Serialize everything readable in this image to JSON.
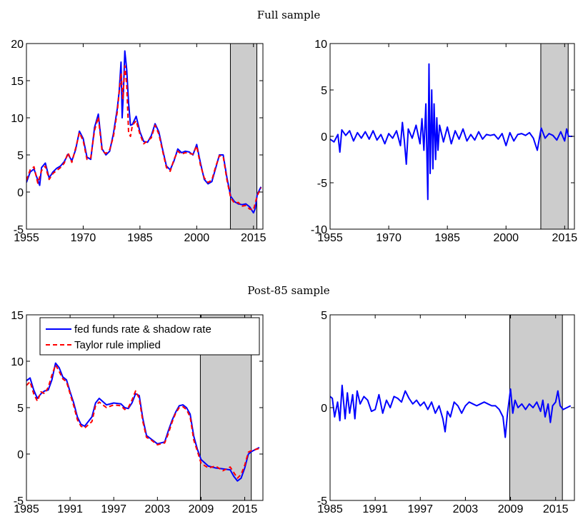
{
  "figure": {
    "row_titles": [
      "Full sample",
      "Post-85 sample"
    ]
  },
  "colors": {
    "series_blue": "#0000ff",
    "series_red": "#ff0000",
    "shade": "#cccccc",
    "axis": "#000000"
  },
  "chart_data": [
    {
      "panel": "top-left",
      "type": "line",
      "row_title": "Full sample",
      "xlim": [
        1955,
        2017.5
      ],
      "ylim": [
        -5,
        20
      ],
      "xticks": [
        1955,
        1970,
        1985,
        2000,
        2015
      ],
      "yticks": [
        -5,
        0,
        5,
        10,
        15,
        20
      ],
      "shaded_regions": [
        [
          2008.9,
          2015.9
        ]
      ],
      "grid": false,
      "series": [
        {
          "color": "#0000ff",
          "dash": "solid",
          "x": [
            1955,
            1956,
            1957,
            1958,
            1958.5,
            1959,
            1960,
            1961,
            1962,
            1963,
            1964,
            1965,
            1966,
            1967,
            1968,
            1969,
            1970,
            1971,
            1972,
            1973,
            1974,
            1975,
            1976,
            1977,
            1978,
            1979,
            1979.5,
            1980,
            1980.3,
            1980.6,
            1981,
            1981.5,
            1982,
            1982.5,
            1983,
            1984,
            1985,
            1986,
            1987,
            1988,
            1989,
            1990,
            1991,
            1992,
            1993,
            1994,
            1995,
            1996,
            1997,
            1998,
            1999,
            2000,
            2001,
            2002,
            2003,
            2004,
            2005,
            2006,
            2007,
            2008,
            2009,
            2010,
            2011,
            2012,
            2013,
            2014,
            2015,
            2015.5,
            2016,
            2017
          ],
          "y": [
            1.3,
            2.7,
            3.1,
            1.6,
            0.9,
            3.3,
            3.9,
            1.9,
            2.7,
            3.2,
            3.5,
            4.1,
            5.1,
            4.2,
            5.7,
            8.2,
            7.2,
            4.7,
            4.4,
            8.7,
            10.5,
            5.8,
            5.0,
            5.5,
            7.9,
            11.2,
            13.5,
            17.5,
            10.0,
            13.0,
            19.0,
            16.5,
            12.0,
            9.0,
            9.1,
            10.2,
            8.1,
            6.8,
            6.7,
            7.6,
            9.2,
            8.1,
            5.7,
            3.5,
            3.0,
            4.2,
            5.8,
            5.3,
            5.5,
            5.4,
            5.0,
            6.4,
            3.9,
            1.7,
            1.1,
            1.4,
            3.2,
            5.0,
            5.0,
            1.9,
            -0.6,
            -1.3,
            -1.6,
            -1.7,
            -1.6,
            -2.0,
            -2.8,
            -2.2,
            -0.3,
            0.7
          ]
        },
        {
          "color": "#ff0000",
          "dash": "dashed",
          "x": [
            1955,
            1956,
            1957,
            1958,
            1959,
            1960,
            1961,
            1962,
            1963,
            1964,
            1965,
            1966,
            1967,
            1968,
            1969,
            1970,
            1971,
            1972,
            1973,
            1974,
            1975,
            1976,
            1977,
            1978,
            1979,
            1980,
            1980.5,
            1981,
            1981.5,
            1982,
            1982.5,
            1983,
            1984,
            1985,
            1986,
            1987,
            1988,
            1989,
            1990,
            1991,
            1992,
            1993,
            1994,
            1995,
            1996,
            1997,
            1998,
            1999,
            2000,
            2001,
            2002,
            2003,
            2004,
            2005,
            2006,
            2007,
            2008,
            2009,
            2010,
            2011,
            2012,
            2013,
            2014,
            2015,
            2016,
            2017
          ],
          "y": [
            1.6,
            3.0,
            3.4,
            1.2,
            2.9,
            3.5,
            1.7,
            2.5,
            2.9,
            3.3,
            3.9,
            5.3,
            4.0,
            5.9,
            8.0,
            6.9,
            4.4,
            4.6,
            8.3,
            10.1,
            5.5,
            5.2,
            5.7,
            7.5,
            10.8,
            16.0,
            12.5,
            17.0,
            14.5,
            8.0,
            7.5,
            9.0,
            9.6,
            7.8,
            6.5,
            6.9,
            7.3,
            9.0,
            7.8,
            5.5,
            3.3,
            2.8,
            4.4,
            5.5,
            5.1,
            5.3,
            5.2,
            5.1,
            6.2,
            3.6,
            1.9,
            1.3,
            1.6,
            3.4,
            4.9,
            4.8,
            1.6,
            -0.8,
            -1.5,
            -1.4,
            -1.9,
            -1.8,
            -2.3,
            -2.4,
            -0.5,
            0.6
          ]
        }
      ]
    },
    {
      "panel": "top-right",
      "type": "line",
      "row_title": "Full sample",
      "xlim": [
        1955,
        2017.5
      ],
      "ylim": [
        -10,
        10
      ],
      "xticks": [
        1955,
        1970,
        1985,
        2000,
        2015
      ],
      "yticks": [
        -10,
        -5,
        0,
        5,
        10
      ],
      "shaded_regions": [
        [
          2008.9,
          2015.9
        ]
      ],
      "grid": false,
      "series": [
        {
          "color": "#0000ff",
          "dash": "solid",
          "x": [
            1955,
            1956,
            1957,
            1957.5,
            1958,
            1959,
            1960,
            1961,
            1962,
            1963,
            1964,
            1965,
            1966,
            1967,
            1968,
            1969,
            1970,
            1971,
            1972,
            1973,
            1973.5,
            1974,
            1974.5,
            1975,
            1976,
            1977,
            1978,
            1978.5,
            1979,
            1979.5,
            1980,
            1980.3,
            1980.6,
            1981,
            1981.3,
            1981.6,
            1982,
            1982.3,
            1982.6,
            1983,
            1984,
            1985,
            1986,
            1987,
            1988,
            1989,
            1990,
            1991,
            1992,
            1993,
            1994,
            1995,
            1996,
            1997,
            1998,
            1999,
            2000,
            2001,
            2002,
            2003,
            2004,
            2005,
            2006,
            2007,
            2008,
            2009,
            2010,
            2011,
            2012,
            2013,
            2014,
            2015,
            2015.5,
            2016,
            2017
          ],
          "y": [
            -0.3,
            -0.6,
            0.2,
            -1.7,
            0.7,
            0.1,
            0.6,
            -0.5,
            0.4,
            -0.2,
            0.5,
            -0.3,
            0.6,
            -0.4,
            0.2,
            -0.8,
            0.3,
            -0.2,
            0.6,
            -1.0,
            1.5,
            -0.5,
            -3.0,
            0.8,
            -0.2,
            1.2,
            -0.8,
            1.9,
            -1.5,
            3.5,
            -6.8,
            7.8,
            -4.0,
            5.0,
            -3.5,
            3.5,
            -2.5,
            2.0,
            -1.5,
            1.2,
            -0.6,
            1.0,
            -0.8,
            0.6,
            -0.3,
            0.8,
            -0.5,
            0.2,
            -0.4,
            0.5,
            -0.3,
            0.2,
            0.1,
            0.2,
            -0.3,
            0.3,
            -1.0,
            0.4,
            -0.5,
            0.2,
            0.3,
            0.1,
            0.4,
            -0.2,
            -1.5,
            0.9,
            -0.2,
            0.3,
            0.1,
            -0.4,
            0.5,
            -0.5,
            0.8,
            0.0,
            0.0
          ]
        }
      ]
    },
    {
      "panel": "bottom-left",
      "type": "line",
      "row_title": "Post-85 sample",
      "xlim": [
        1985,
        2017.5
      ],
      "ylim": [
        -5,
        15
      ],
      "xticks": [
        1985,
        1991,
        1997,
        2003,
        2009,
        2015
      ],
      "yticks": [
        -5,
        0,
        5,
        10,
        15
      ],
      "shaded_regions": [
        [
          2008.9,
          2015.9
        ]
      ],
      "grid": false,
      "legend": {
        "position": "top",
        "entries": [
          "fed funds rate & shadow rate",
          "Taylor rule implied"
        ]
      },
      "series": [
        {
          "name": "fed funds rate & shadow rate",
          "color": "#0000ff",
          "dash": "solid",
          "x": [
            1985,
            1985.5,
            1986,
            1986.5,
            1987,
            1987.5,
            1988,
            1988.5,
            1989,
            1989.5,
            1990,
            1990.5,
            1991,
            1991.5,
            1992,
            1992.5,
            1993,
            1994,
            1994.5,
            1995,
            1996,
            1997,
            1998,
            1998.5,
            1999,
            1999.5,
            2000,
            2000.5,
            2001,
            2001.5,
            2002,
            2003,
            2004,
            2004.5,
            2005,
            2005.5,
            2006,
            2006.5,
            2007,
            2007.5,
            2008,
            2008.5,
            2009,
            2010,
            2011,
            2012,
            2013,
            2013.5,
            2014,
            2014.5,
            2015,
            2015.5,
            2016,
            2017
          ],
          "y": [
            7.9,
            8.2,
            6.9,
            6.0,
            6.5,
            6.8,
            6.9,
            8.0,
            9.8,
            9.3,
            8.3,
            8.0,
            6.7,
            5.5,
            4.0,
            3.2,
            3.0,
            4.0,
            5.5,
            6.0,
            5.3,
            5.5,
            5.4,
            5.0,
            4.9,
            5.5,
            6.5,
            6.3,
            3.8,
            2.0,
            1.7,
            1.1,
            1.3,
            2.5,
            3.6,
            4.5,
            5.2,
            5.3,
            5.0,
            4.3,
            1.9,
            0.5,
            -0.6,
            -1.3,
            -1.5,
            -1.6,
            -1.7,
            -2.4,
            -2.9,
            -2.6,
            -1.5,
            0.0,
            0.3,
            0.7
          ]
        },
        {
          "name": "Taylor rule implied",
          "color": "#ff0000",
          "dash": "dashed",
          "x": [
            1985,
            1985.5,
            1986,
            1986.5,
            1987,
            1987.5,
            1988,
            1988.5,
            1989,
            1989.5,
            1990,
            1990.5,
            1991,
            1991.5,
            1992,
            1992.5,
            1993,
            1994,
            1994.5,
            1995,
            1996,
            1997,
            1998,
            1998.5,
            1999,
            1999.5,
            2000,
            2000.5,
            2001,
            2001.5,
            2002,
            2003,
            2004,
            2004.5,
            2005,
            2005.5,
            2006,
            2006.5,
            2007,
            2007.5,
            2008,
            2008.5,
            2009,
            2010,
            2011,
            2012,
            2013,
            2013.5,
            2014,
            2014.5,
            2015,
            2015.5,
            2016,
            2017
          ],
          "y": [
            7.4,
            7.8,
            6.5,
            5.7,
            6.7,
            6.5,
            7.2,
            8.5,
            9.6,
            8.9,
            8.1,
            7.8,
            6.5,
            5.2,
            3.7,
            3.0,
            2.8,
            3.5,
            5.2,
            5.6,
            5.0,
            5.3,
            5.2,
            4.8,
            5.0,
            5.8,
            6.8,
            6.0,
            3.5,
            1.8,
            1.6,
            1.0,
            1.2,
            2.2,
            3.4,
            4.4,
            5.0,
            5.1,
            4.8,
            4.0,
            1.5,
            0.3,
            -1.0,
            -1.5,
            -1.3,
            -1.8,
            -1.4,
            -2.0,
            -2.6,
            -2.2,
            -1.2,
            0.2,
            0.4,
            0.6
          ]
        }
      ]
    },
    {
      "panel": "bottom-right",
      "type": "line",
      "row_title": "Post-85 sample",
      "xlim": [
        1985,
        2017.5
      ],
      "ylim": [
        -5,
        5
      ],
      "xticks": [
        1985,
        1991,
        1997,
        2003,
        2009,
        2015
      ],
      "yticks": [
        -5,
        0,
        5
      ],
      "shaded_regions": [
        [
          2008.9,
          2015.9
        ]
      ],
      "grid": false,
      "series": [
        {
          "color": "#0000ff",
          "dash": "solid",
          "x": [
            1985,
            1985.3,
            1985.6,
            1986,
            1986.3,
            1986.6,
            1987,
            1987.3,
            1987.6,
            1988,
            1988.3,
            1988.6,
            1989,
            1989.5,
            1990,
            1990.5,
            1991,
            1991.5,
            1992,
            1992.5,
            1993,
            1993.5,
            1994,
            1994.5,
            1995,
            1995.5,
            1996,
            1996.5,
            1997,
            1997.5,
            1998,
            1998.5,
            1999,
            1999.5,
            2000,
            2000.3,
            2000.6,
            2001,
            2001.5,
            2002,
            2002.5,
            2003,
            2003.5,
            2004,
            2004.5,
            2005,
            2005.5,
            2006,
            2006.5,
            2007,
            2007.5,
            2008,
            2008.3,
            2008.6,
            2009,
            2009.3,
            2009.6,
            2010,
            2010.5,
            2011,
            2011.5,
            2012,
            2012.5,
            2013,
            2013.3,
            2013.6,
            2014,
            2014.3,
            2014.6,
            2015,
            2015.3,
            2015.6,
            2016,
            2017
          ],
          "y": [
            0.6,
            0.5,
            -0.5,
            0.3,
            -0.7,
            1.2,
            -0.6,
            0.8,
            -0.3,
            0.7,
            -0.6,
            0.9,
            0.2,
            0.6,
            0.4,
            -0.2,
            -0.1,
            0.7,
            -0.3,
            0.4,
            0.0,
            0.6,
            0.5,
            0.3,
            0.9,
            0.5,
            0.2,
            0.4,
            0.1,
            0.3,
            -0.1,
            0.3,
            -0.3,
            0.1,
            -0.6,
            -1.3,
            -0.2,
            -0.5,
            0.3,
            0.1,
            -0.3,
            0.1,
            0.3,
            0.2,
            0.1,
            0.2,
            0.3,
            0.2,
            0.1,
            0.1,
            -0.1,
            -0.5,
            -1.6,
            -0.3,
            1.0,
            -0.3,
            0.4,
            0.0,
            0.2,
            -0.1,
            0.2,
            0.0,
            0.3,
            -0.2,
            0.4,
            -0.5,
            0.2,
            -0.8,
            0.1,
            0.3,
            0.9,
            0.1,
            -0.1,
            0.1
          ]
        }
      ]
    }
  ]
}
